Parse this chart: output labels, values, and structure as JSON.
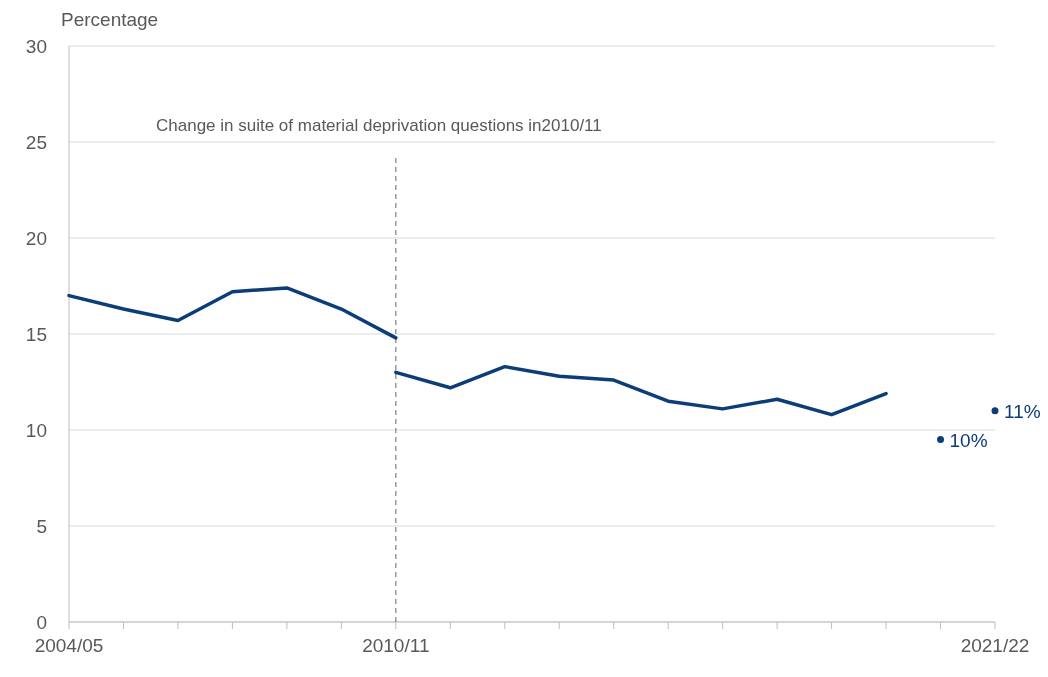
{
  "chart_data": {
    "type": "line",
    "ylabel": "Percentage",
    "categories": [
      "2004/05",
      null,
      null,
      null,
      null,
      null,
      "2010/11",
      null,
      null,
      null,
      null,
      null,
      null,
      null,
      null,
      null,
      null,
      "2021/22"
    ],
    "series": [
      {
        "color": "#0b3d78",
        "values": [
          17.0,
          16.3,
          15.7,
          17.2,
          17.4,
          16.3,
          14.8,
          null,
          null,
          null,
          null,
          null,
          null,
          null,
          null,
          null,
          null,
          null
        ]
      },
      {
        "color": "#0b3d78",
        "values": [
          null,
          null,
          null,
          null,
          null,
          null,
          13.0,
          12.2,
          13.3,
          12.8,
          12.6,
          11.5,
          11.1,
          11.6,
          10.8,
          11.9,
          null,
          null
        ]
      },
      {
        "type": "scatter",
        "marker": "circle",
        "color": "#0b3d78",
        "values": [
          null,
          null,
          null,
          null,
          null,
          null,
          null,
          null,
          null,
          null,
          null,
          null,
          null,
          null,
          null,
          null,
          9.5,
          11.0
        ],
        "value_labels": [
          null,
          null,
          null,
          null,
          null,
          null,
          null,
          null,
          null,
          null,
          null,
          null,
          null,
          null,
          null,
          null,
          "10%",
          "11%"
        ]
      }
    ],
    "ylim": [
      0,
      30
    ],
    "yticks": [
      0,
      5,
      10,
      15,
      20,
      25,
      30
    ],
    "grid": "y",
    "marker": "none",
    "line_style": "solid",
    "ref_lines": [
      {
        "axis": "x",
        "value": "2010/11",
        "color": "#808080",
        "line_style": "dashed"
      }
    ],
    "annotations": [
      "Change in suite of material deprivation questions in2010/11"
    ]
  }
}
